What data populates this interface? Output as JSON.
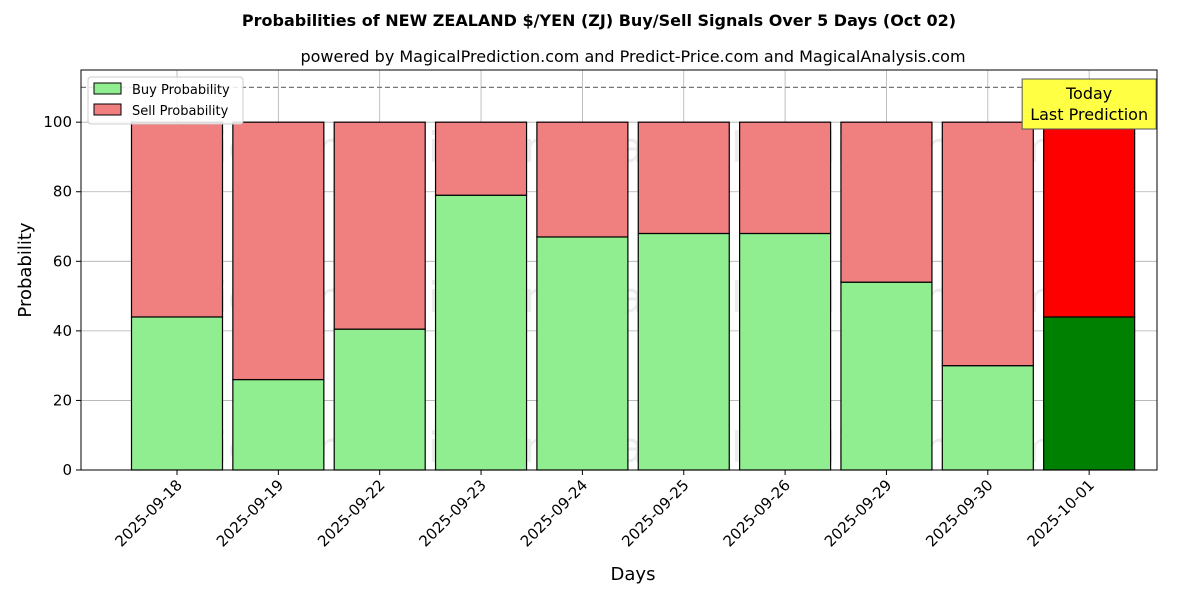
{
  "chart_data": {
    "type": "bar",
    "stacked": true,
    "title": "Probabilities of NEW ZEALAND $/YEN (ZJ) Buy/Sell Signals Over 5 Days (Oct 02)",
    "subtitle": "powered by MagicalPrediction.com and Predict-Price.com and MagicalAnalysis.com",
    "xlabel": "Days",
    "ylabel": "Probability",
    "ylim": [
      0,
      115
    ],
    "yticks": [
      0,
      20,
      40,
      60,
      80,
      100
    ],
    "grid": true,
    "legend_position": "top-left",
    "categories": [
      "2025-09-18",
      "2025-09-19",
      "2025-09-22",
      "2025-09-23",
      "2025-09-24",
      "2025-09-25",
      "2025-09-26",
      "2025-09-29",
      "2025-09-30",
      "2025-10-01"
    ],
    "series": [
      {
        "name": "Buy Probability",
        "values": [
          44,
          26,
          40.5,
          79,
          67,
          68,
          68,
          54,
          30,
          44
        ]
      },
      {
        "name": "Sell Probability",
        "values": [
          56,
          74,
          59.5,
          21,
          33,
          32,
          32,
          46,
          70,
          56
        ]
      }
    ],
    "reference_line": {
      "y": 110,
      "style": "dashed"
    },
    "annotation": {
      "lines": [
        "Today",
        "Last Prediction"
      ],
      "category_index": 9
    },
    "watermarks": [
      "MagicalAnalysis.com",
      "MagicalPrediction.com"
    ],
    "colors": {
      "buy": "#90ee90",
      "sell": "#f08080",
      "buy_highlight": "#008000",
      "sell_highlight": "#ff0000",
      "annotation_bg": "#ffff44",
      "grid": "#b0b0b0"
    }
  }
}
